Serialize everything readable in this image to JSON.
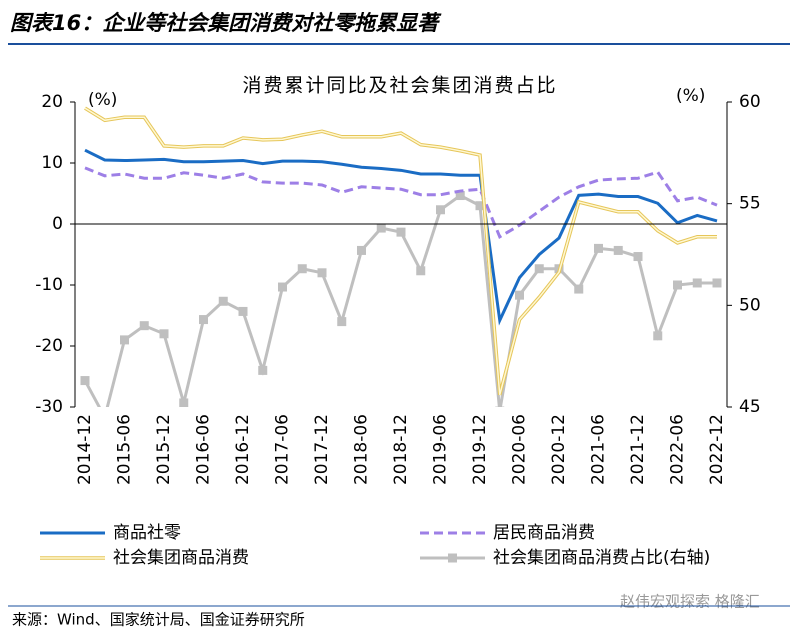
{
  "header": {
    "title": "图表16：企业等社会集团消费对社零拖累显著"
  },
  "chart_data": {
    "type": "line",
    "title": "消费累计同比及社会集团消费占比",
    "y_unit": "(%)",
    "y2_unit": "(%)",
    "categories": [
      "2014-12",
      null,
      "2015-06",
      null,
      "2015-12",
      null,
      "2016-06",
      null,
      "2016-12",
      null,
      "2017-06",
      null,
      "2017-12",
      null,
      "2018-06",
      null,
      "2018-12",
      null,
      "2019-06",
      null,
      "2019-12",
      null,
      "2020-06",
      null,
      "2020-12",
      null,
      "2021-06",
      null,
      "2021-12",
      null,
      "2022-06",
      null,
      "2022-12"
    ],
    "ylim": [
      -30,
      20
    ],
    "yticks": [
      -30,
      -20,
      -10,
      0,
      10,
      20
    ],
    "y2lim": [
      45,
      60
    ],
    "y2ticks": [
      45,
      50,
      55,
      60
    ],
    "series": [
      {
        "name": "商品社零",
        "color": "#1a6cc4",
        "style": "solid",
        "values": [
          12.1,
          10.5,
          10.4,
          10.5,
          10.6,
          10.2,
          10.2,
          10.3,
          10.4,
          9.9,
          10.3,
          10.3,
          10.2,
          9.8,
          9.3,
          9.1,
          8.8,
          8.2,
          8.2,
          8.0,
          8.0,
          -15.8,
          -8.8,
          -5,
          -2.3,
          4.7,
          4.9,
          4.5,
          4.5,
          3.4,
          0.2,
          1.4,
          0.5
        ]
      },
      {
        "name": "居民商品消费",
        "color": "#9d7fe6",
        "style": "dashed",
        "values": [
          9.2,
          7.9,
          8.2,
          7.5,
          7.5,
          8.4,
          8.0,
          7.5,
          8.2,
          6.9,
          6.7,
          6.7,
          6.4,
          5.2,
          6.1,
          5.9,
          5.7,
          4.8,
          4.8,
          5.4,
          5.7,
          -2.1,
          -0.2,
          2.1,
          4.4,
          6.1,
          7.2,
          7.4,
          7.5,
          8.5,
          3.8,
          4.4,
          3.1
        ]
      },
      {
        "name": "社会集团商品消费",
        "color": "#e6c65a",
        "style": "double",
        "values": [
          19,
          17,
          17.5,
          17.5,
          12.8,
          12.6,
          12.8,
          12.8,
          14.1,
          13.8,
          13.9,
          14.6,
          15.2,
          14.3,
          14.3,
          14.3,
          14.9,
          13,
          12.6,
          12,
          11.3,
          -28,
          -15.7,
          -12,
          -7.9,
          3.6,
          2.8,
          2,
          2,
          -1.1,
          -3.1,
          -2.1,
          -2.1
        ]
      },
      {
        "name": "社会集团商品消费占比(右轴)",
        "color": "#bfbfbf",
        "style": "solid",
        "marker": "square",
        "axis": "y2",
        "values": [
          46.3,
          44.5,
          48.3,
          49,
          48.6,
          45.2,
          49.3,
          50.2,
          49.7,
          46.8,
          50.9,
          51.8,
          51.6,
          49.2,
          52.7,
          53.8,
          53.6,
          51.7,
          54.7,
          55.4,
          54.9,
          44.8,
          50.5,
          51.8,
          51.8,
          50.8,
          52.8,
          52.7,
          52.4,
          48.5,
          51,
          51.1,
          51.1
        ]
      }
    ]
  },
  "source": "来源：Wind、国家统计局、国金证券研究所",
  "watermark": "赵伟宏观探索 格隆汇"
}
